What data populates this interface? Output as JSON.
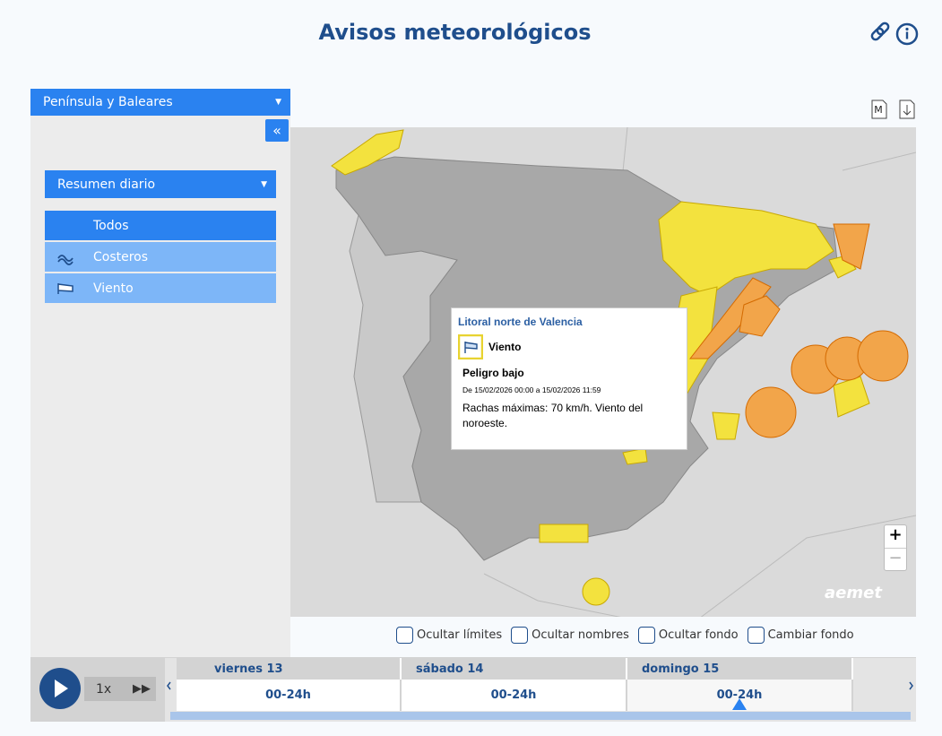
{
  "header": {
    "title": "Avisos meteorológicos"
  },
  "region_selector": {
    "label": "Península y Baleares"
  },
  "sidebar": {
    "collapse": "«",
    "view_selector": "Resumen diario",
    "filters": [
      "Todos",
      "Costeros",
      "Viento"
    ]
  },
  "map_tools": {
    "pdf_label": "M"
  },
  "popup": {
    "zone": "Litoral norte de Valencia",
    "phenomenon": "Viento",
    "level": "Peligro bajo",
    "period": "De 15/02/2026 00:00 a 15/02/2026 11:59",
    "description": "Rachas máximas: 70 km/h. Viento del noroeste."
  },
  "map": {
    "zoom_in": "+",
    "zoom_out": "−",
    "logo": "aemet",
    "options": [
      "Ocultar límites",
      "Ocultar nombres",
      "Ocultar fondo",
      "Cambiar fondo"
    ]
  },
  "timeline": {
    "speed": "1x",
    "days": [
      {
        "label": "viernes 13",
        "period": "00-24h"
      },
      {
        "label": "sábado 14",
        "period": "00-24h"
      },
      {
        "label": "domingo 15",
        "period": "00-24h"
      }
    ]
  }
}
